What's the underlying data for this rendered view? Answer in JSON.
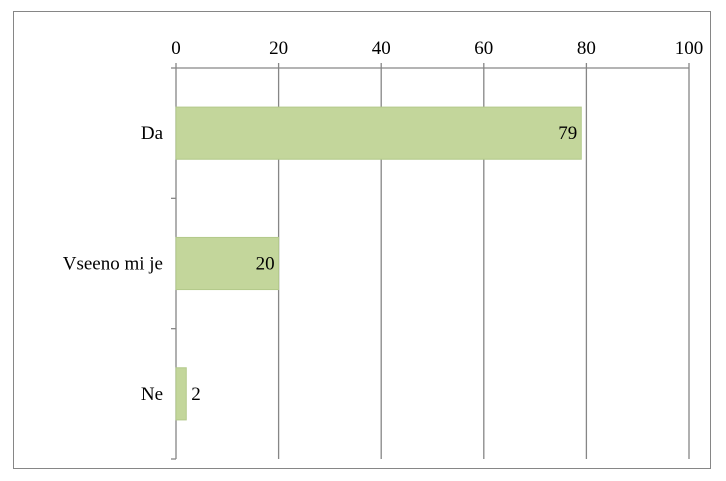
{
  "chart_data": {
    "type": "bar",
    "orientation": "horizontal",
    "title": "",
    "xlabel": "",
    "ylabel": "",
    "categories": [
      "Da",
      "Vseeno mi je",
      "Ne"
    ],
    "values": [
      79,
      20,
      2
    ],
    "data_labels": [
      "79",
      "20",
      "2"
    ],
    "x_ticks": [
      "0",
      "20",
      "40",
      "60",
      "80",
      "100"
    ],
    "xlim": [
      0,
      100
    ],
    "x_axis_position": "top",
    "grid": true,
    "legend": "none",
    "colors": {
      "bar_fill": "#c3d69b",
      "bar_stroke": "#b3c98a",
      "grid": "#868686",
      "axis": "#868686",
      "frame": "#868686"
    }
  }
}
